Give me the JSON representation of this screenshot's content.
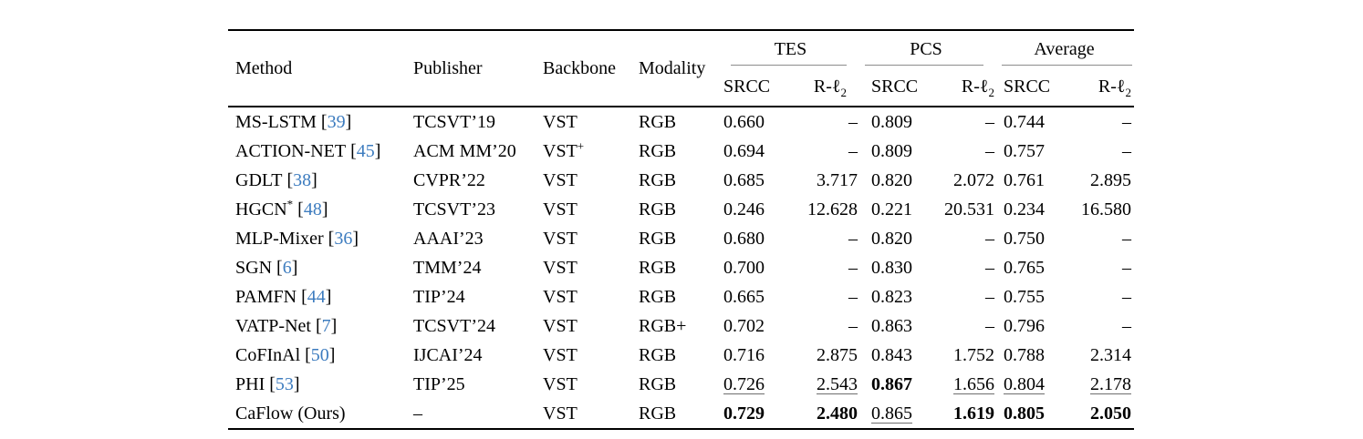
{
  "colors": {
    "background": "#ffffff",
    "text": "#000000",
    "citation_blue": "#3d7cbf",
    "heavy_rule": "#000000",
    "cmidrule_gray": "#8c8c8c"
  },
  "labels": {
    "srcc": "SRCC",
    "r_prefix": "R-",
    "ell": "ℓ",
    "sub2": "2",
    "cite_open": "[",
    "cite_close": "]"
  },
  "table": {
    "columns": {
      "method": "Method",
      "publisher": "Publisher",
      "backbone": "Backbone",
      "modality": "Modality"
    },
    "groups": [
      {
        "label": "TES",
        "subcolumns": [
          "SRCC",
          "R-ℓ2"
        ]
      },
      {
        "label": "PCS",
        "subcolumns": [
          "SRCC",
          "R-ℓ2"
        ]
      },
      {
        "label": "Average",
        "subcolumns": [
          "SRCC",
          "R-ℓ2"
        ]
      }
    ],
    "rows": [
      {
        "method": "MS-LSTM",
        "method_sup": "",
        "cite": "39",
        "publisher": "TCSVT’19",
        "backbone": "VST",
        "backbone_sup": "",
        "modality": "RGB",
        "metrics": [
          {
            "t": "0.660",
            "s": "plain"
          },
          {
            "t": "–",
            "s": "plain"
          },
          {
            "t": "0.809",
            "s": "plain"
          },
          {
            "t": "–",
            "s": "plain"
          },
          {
            "t": "0.744",
            "s": "plain"
          },
          {
            "t": "–",
            "s": "plain"
          }
        ]
      },
      {
        "method": "ACTION-NET",
        "method_sup": "",
        "cite": "45",
        "publisher": "ACM MM’20",
        "backbone": "VST",
        "backbone_sup": "+",
        "modality": "RGB",
        "metrics": [
          {
            "t": "0.694",
            "s": "plain"
          },
          {
            "t": "–",
            "s": "plain"
          },
          {
            "t": "0.809",
            "s": "plain"
          },
          {
            "t": "–",
            "s": "plain"
          },
          {
            "t": "0.757",
            "s": "plain"
          },
          {
            "t": "–",
            "s": "plain"
          }
        ]
      },
      {
        "method": "GDLT",
        "method_sup": "",
        "cite": "38",
        "publisher": "CVPR’22",
        "backbone": "VST",
        "backbone_sup": "",
        "modality": "RGB",
        "metrics": [
          {
            "t": "0.685",
            "s": "plain"
          },
          {
            "t": "3.717",
            "s": "plain"
          },
          {
            "t": "0.820",
            "s": "plain"
          },
          {
            "t": "2.072",
            "s": "plain"
          },
          {
            "t": "0.761",
            "s": "plain"
          },
          {
            "t": "2.895",
            "s": "plain"
          }
        ]
      },
      {
        "method": "HGCN",
        "method_sup": "*",
        "cite": "48",
        "publisher": "TCSVT’23",
        "backbone": "VST",
        "backbone_sup": "",
        "modality": "RGB",
        "metrics": [
          {
            "t": "0.246",
            "s": "plain"
          },
          {
            "t": "12.628",
            "s": "plain"
          },
          {
            "t": "0.221",
            "s": "plain"
          },
          {
            "t": "20.531",
            "s": "plain"
          },
          {
            "t": "0.234",
            "s": "plain"
          },
          {
            "t": "16.580",
            "s": "plain"
          }
        ]
      },
      {
        "method": "MLP-Mixer",
        "method_sup": "",
        "cite": "36",
        "publisher": "AAAI’23",
        "backbone": "VST",
        "backbone_sup": "",
        "modality": "RGB",
        "metrics": [
          {
            "t": "0.680",
            "s": "plain"
          },
          {
            "t": "–",
            "s": "plain"
          },
          {
            "t": "0.820",
            "s": "plain"
          },
          {
            "t": "–",
            "s": "plain"
          },
          {
            "t": "0.750",
            "s": "plain"
          },
          {
            "t": "–",
            "s": "plain"
          }
        ]
      },
      {
        "method": "SGN",
        "method_sup": "",
        "cite": "6",
        "publisher": "TMM’24",
        "backbone": "VST",
        "backbone_sup": "",
        "modality": "RGB",
        "metrics": [
          {
            "t": "0.700",
            "s": "plain"
          },
          {
            "t": "–",
            "s": "plain"
          },
          {
            "t": "0.830",
            "s": "plain"
          },
          {
            "t": "–",
            "s": "plain"
          },
          {
            "t": "0.765",
            "s": "plain"
          },
          {
            "t": "–",
            "s": "plain"
          }
        ]
      },
      {
        "method": "PAMFN",
        "method_sup": "",
        "cite": "44",
        "publisher": "TIP’24",
        "backbone": "VST",
        "backbone_sup": "",
        "modality": "RGB",
        "metrics": [
          {
            "t": "0.665",
            "s": "plain"
          },
          {
            "t": "–",
            "s": "plain"
          },
          {
            "t": "0.823",
            "s": "plain"
          },
          {
            "t": "–",
            "s": "plain"
          },
          {
            "t": "0.755",
            "s": "plain"
          },
          {
            "t": "–",
            "s": "plain"
          }
        ]
      },
      {
        "method": "VATP-Net",
        "method_sup": "",
        "cite": "7",
        "publisher": "TCSVT’24",
        "backbone": "VST",
        "backbone_sup": "",
        "modality": "RGB+",
        "metrics": [
          {
            "t": "0.702",
            "s": "plain"
          },
          {
            "t": "–",
            "s": "plain"
          },
          {
            "t": "0.863",
            "s": "plain"
          },
          {
            "t": "–",
            "s": "plain"
          },
          {
            "t": "0.796",
            "s": "plain"
          },
          {
            "t": "–",
            "s": "plain"
          }
        ]
      },
      {
        "method": "CoFInAl",
        "method_sup": "",
        "cite": "50",
        "publisher": "IJCAI’24",
        "backbone": "VST",
        "backbone_sup": "",
        "modality": "RGB",
        "metrics": [
          {
            "t": "0.716",
            "s": "plain"
          },
          {
            "t": "2.875",
            "s": "plain"
          },
          {
            "t": "0.843",
            "s": "plain"
          },
          {
            "t": "1.752",
            "s": "plain"
          },
          {
            "t": "0.788",
            "s": "plain"
          },
          {
            "t": "2.314",
            "s": "plain"
          }
        ]
      },
      {
        "method": "PHI",
        "method_sup": "",
        "cite": "53",
        "publisher": "TIP’25",
        "backbone": "VST",
        "backbone_sup": "",
        "modality": "RGB",
        "metrics": [
          {
            "t": "0.726",
            "s": "underline"
          },
          {
            "t": "2.543",
            "s": "underline"
          },
          {
            "t": "0.867",
            "s": "bold"
          },
          {
            "t": "1.656",
            "s": "underline"
          },
          {
            "t": "0.804",
            "s": "underline"
          },
          {
            "t": "2.178",
            "s": "underline"
          }
        ]
      },
      {
        "method": "CaFlow (Ours)",
        "method_sup": "",
        "cite": "",
        "publisher": "–",
        "backbone": "VST",
        "backbone_sup": "",
        "modality": "RGB",
        "metrics": [
          {
            "t": "0.729",
            "s": "bold"
          },
          {
            "t": "2.480",
            "s": "bold"
          },
          {
            "t": "0.865",
            "s": "underline"
          },
          {
            "t": "1.619",
            "s": "bold"
          },
          {
            "t": "0.805",
            "s": "bold"
          },
          {
            "t": "2.050",
            "s": "bold"
          }
        ]
      }
    ]
  }
}
